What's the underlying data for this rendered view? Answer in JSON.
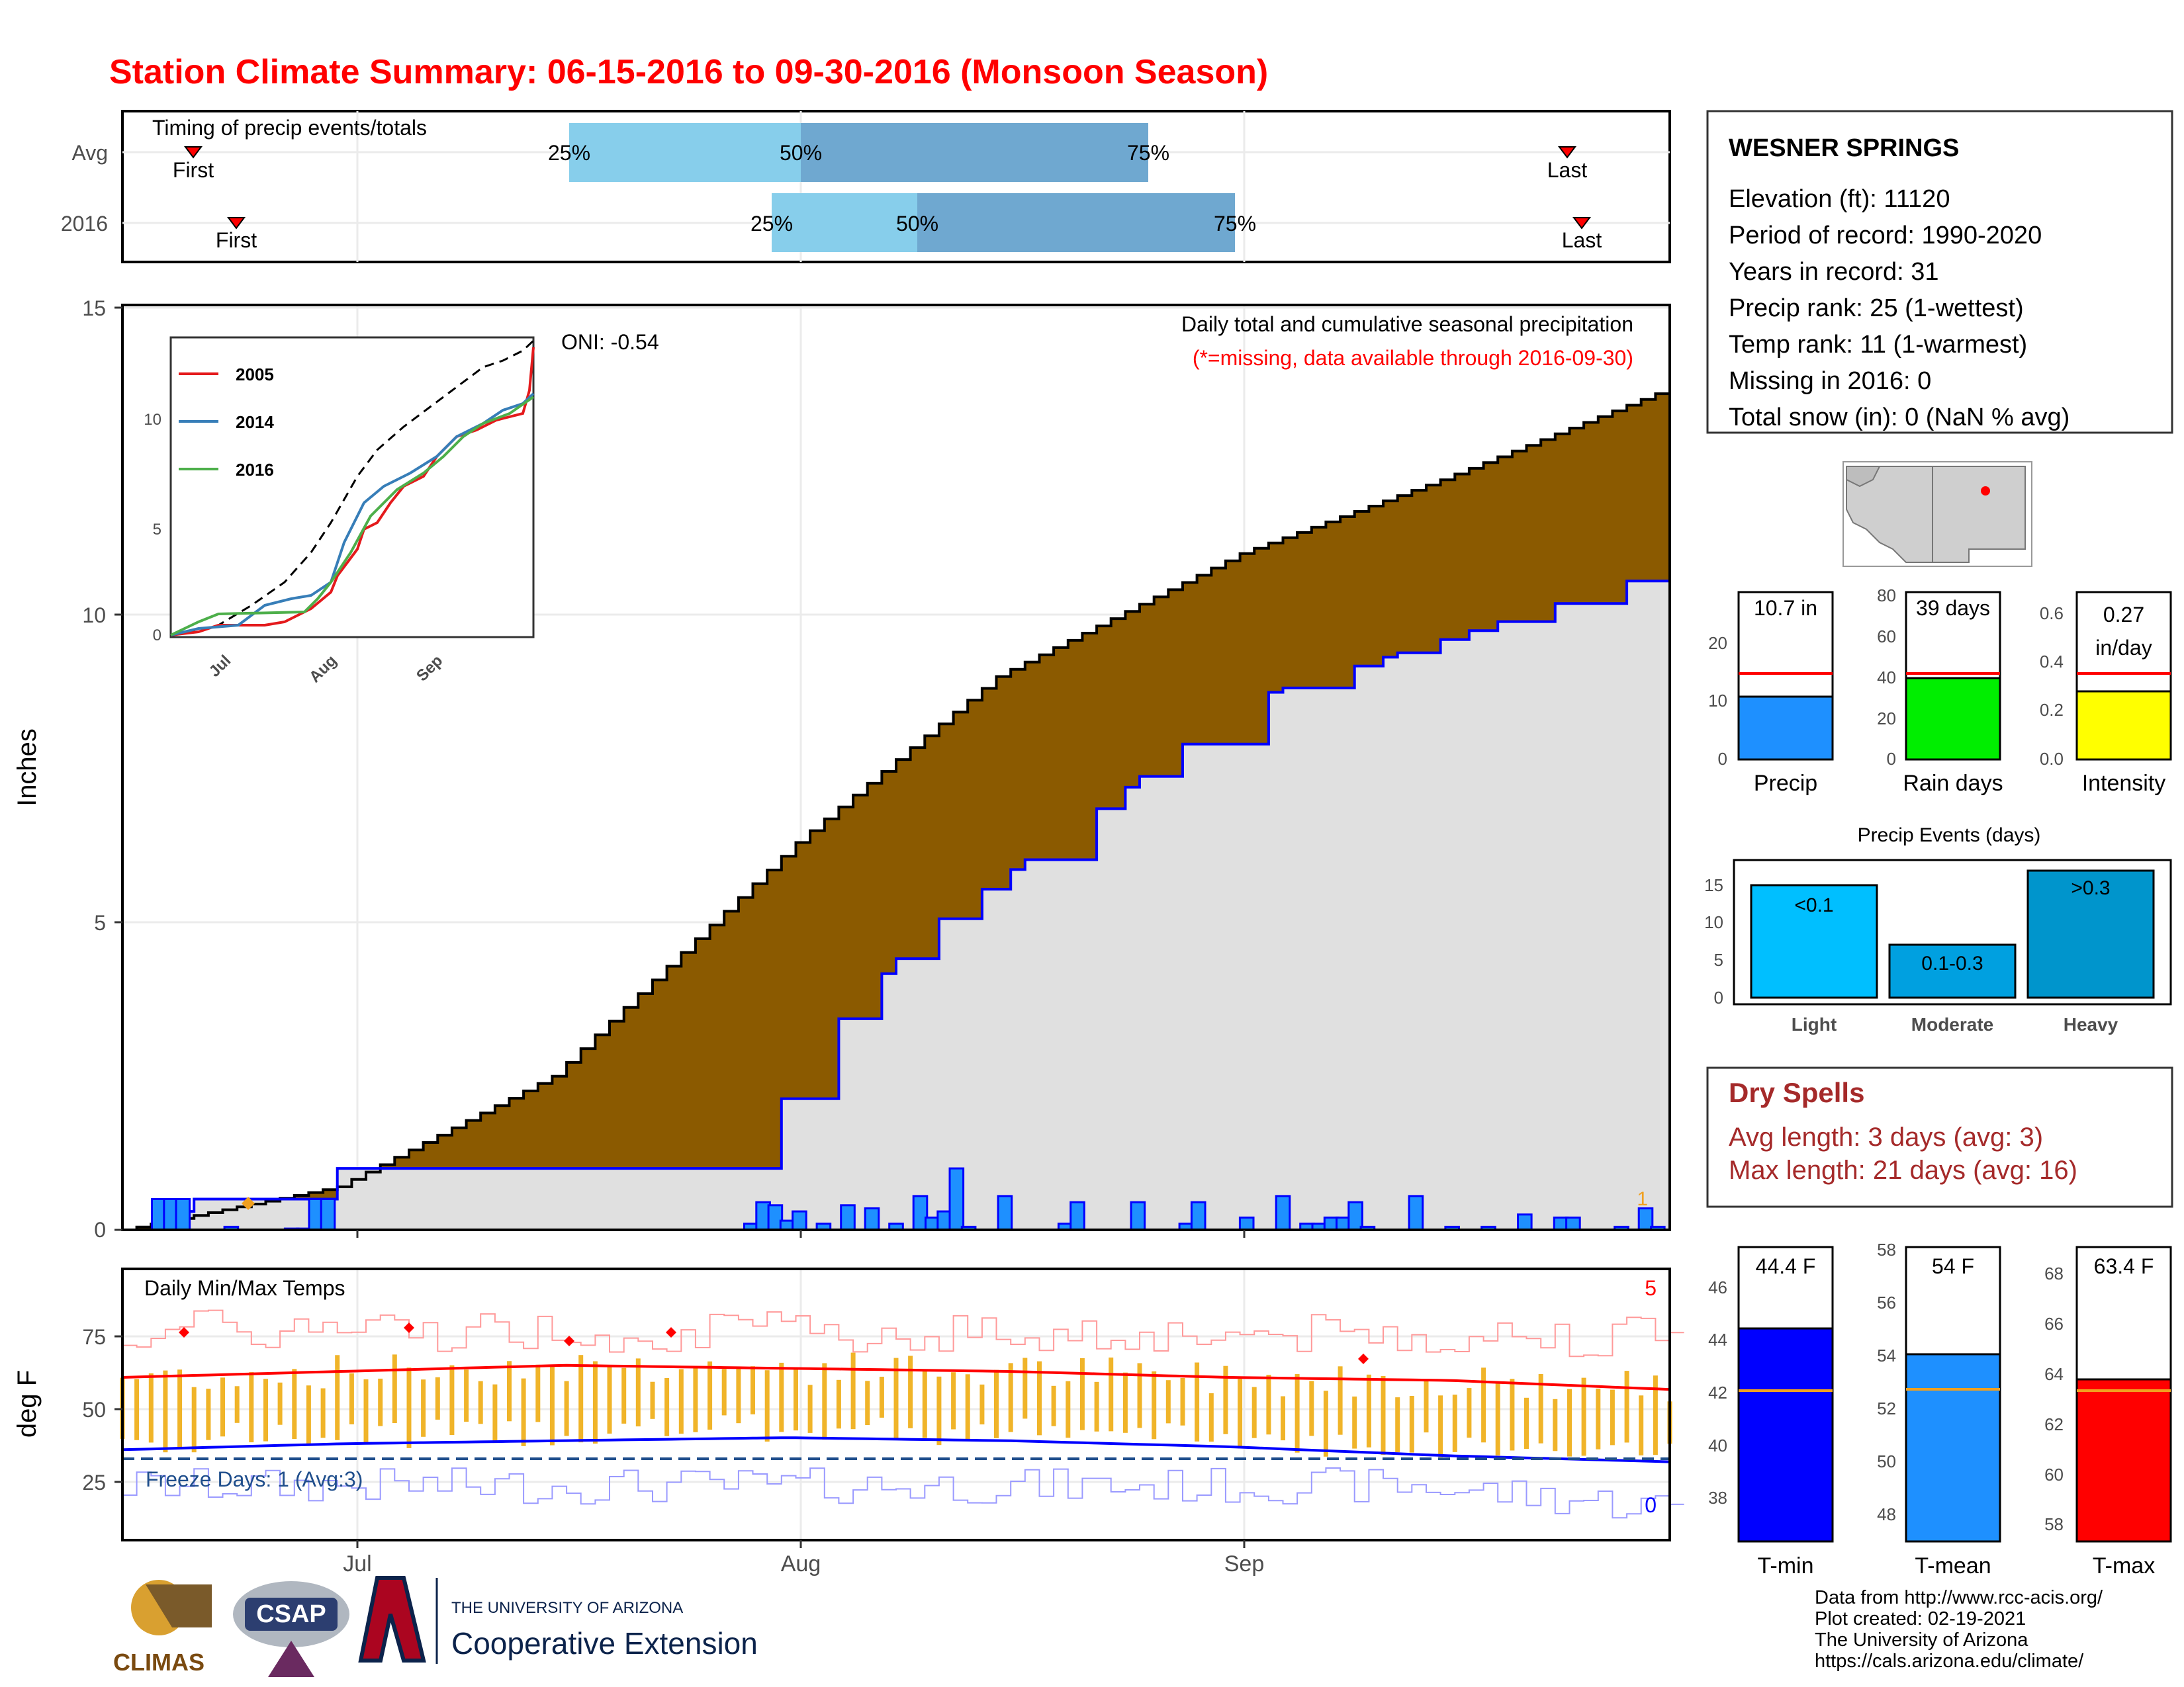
{
  "title": "Station Climate Summary: 06-15-2016 to 09-30-2016 (Monsoon Season)",
  "colors": {
    "title": "#ff0000",
    "brown": "#8b5a00",
    "fill_gray": "#e0e0e0",
    "blue": "#0000ff",
    "bar_blue": "#1e90ff",
    "light_blue": "#87ceeb",
    "mid_blue": "#6fa8d0",
    "orange": "#f0b429",
    "dry_red": "#a52a2a"
  },
  "timing": {
    "label": "Timing of precip events/totals",
    "rows": [
      {
        "name": "Avg",
        "first": "First",
        "last": "Last",
        "p25": "25%",
        "p50": "50%",
        "p75": "75%"
      },
      {
        "name": "2016",
        "first": "First",
        "last": "Last",
        "p25": "25%",
        "p50": "50%",
        "p75": "75%"
      }
    ]
  },
  "main": {
    "ylabel": "Inches",
    "note1": "Daily total and cumulative seasonal precipitation",
    "note2": "(*=missing, data available through 2016-09-30)",
    "oni": "ONI: -0.54",
    "corner_count": "1",
    "yticks": [
      "0",
      "5",
      "10",
      "15"
    ]
  },
  "inset": {
    "legend": [
      "2005",
      "2014",
      "2016"
    ],
    "yticks": [
      "0",
      "5",
      "10"
    ],
    "xticks": [
      "Jul",
      "Aug",
      "Sep"
    ]
  },
  "temps": {
    "title": "Daily Min/Max Temps",
    "freeze": "Freeze Days: 1 (Avg:3)",
    "count_hot": "5",
    "count_cold": "0",
    "ylabel": "deg F",
    "yticks": [
      "25",
      "50",
      "75"
    ],
    "xticks": [
      "Jul",
      "Aug",
      "Sep"
    ]
  },
  "station": {
    "name": "WESNER SPRINGS",
    "lines": [
      "Elevation (ft): 11120",
      "Period of record: 1990-2020",
      "Years in record: 31",
      "Precip rank: 25 (1-wettest)",
      "Temp rank: 11 (1-warmest)",
      "Missing in 2016: 0",
      "Total snow (in): 0 (NaN % avg)"
    ]
  },
  "mini_bars": [
    {
      "label": "Precip",
      "value_text": "10.7 in",
      "yticks": [
        "0",
        "10",
        "20"
      ]
    },
    {
      "label": "Rain days",
      "value_text": "39 days",
      "yticks": [
        "0",
        "20",
        "40",
        "60",
        "80"
      ]
    },
    {
      "label": "Intensity",
      "value_text": "0.27",
      "value_text2": "in/day",
      "yticks": [
        "0.0",
        "0.2",
        "0.4",
        "0.6"
      ]
    }
  ],
  "events": {
    "title": "Precip Events (days)",
    "bars": [
      {
        "cat": "Light",
        "label": "<0.1"
      },
      {
        "cat": "Moderate",
        "label": "0.1-0.3"
      },
      {
        "cat": "Heavy",
        "label": ">0.3"
      }
    ],
    "yticks": [
      "0",
      "5",
      "10",
      "15"
    ]
  },
  "dry": {
    "title": "Dry Spells",
    "line1": "Avg length: 3 days (avg: 3)",
    "line2": "Max length: 21 days (avg: 16)"
  },
  "temp_bars": [
    {
      "label": "T-min",
      "value_text": "44.4 F",
      "yticks": [
        "38",
        "40",
        "42",
        "44",
        "46"
      ]
    },
    {
      "label": "T-mean",
      "value_text": "54 F",
      "yticks": [
        "48",
        "50",
        "52",
        "54",
        "56",
        "58"
      ]
    },
    {
      "label": "T-max",
      "value_text": "63.4 F",
      "yticks": [
        "58",
        "60",
        "62",
        "64",
        "66",
        "68"
      ]
    }
  ],
  "footer": {
    "lines": [
      "Data from http://www.rcc-acis.org/",
      "Plot created: 02-19-2021",
      "The University of Arizona",
      "https://cals.arizona.edu/climate/"
    ],
    "logo1": "CLIMAS",
    "logo2": "CSAP",
    "logo3_top": "THE UNIVERSITY OF ARIZONA",
    "logo3_bottom": "Cooperative Extension"
  },
  "chart_data": [
    {
      "type": "area",
      "title": "Daily total and cumulative seasonal precipitation",
      "ylabel": "Inches",
      "xticks": [
        "Jul",
        "Aug",
        "Sep"
      ],
      "ylim": [
        0,
        15
      ],
      "series": [
        {
          "values_desc": "cumulative average (brown top)",
          "x": [
            "06-15",
            "06-30",
            "07-15",
            "08-01",
            "08-15",
            "09-01",
            "09-15",
            "09-30"
          ],
          "values": [
            0.0,
            0.7,
            2.5,
            6.3,
            9.0,
            11.0,
            12.2,
            13.6
          ]
        },
        {
          "values_desc": "cumulative 2016 (blue line)",
          "x": [
            "06-15",
            "06-20",
            "06-30",
            "07-29",
            "08-01",
            "08-10",
            "08-20",
            "09-01",
            "09-15",
            "09-30"
          ],
          "values": [
            0.0,
            0.5,
            1.0,
            1.0,
            2.7,
            4.9,
            6.5,
            8.6,
            9.6,
            10.7
          ]
        }
      ]
    },
    {
      "type": "line",
      "title": "Daily Min/Max Temps",
      "ylabel": "deg F",
      "ylim": [
        10,
        100
      ],
      "series": [
        {
          "name": "max avg",
          "values": [
            64,
            66,
            68,
            67,
            66,
            64,
            63,
            60
          ]
        },
        {
          "name": "min avg",
          "values": [
            40,
            42,
            43,
            44,
            43,
            41,
            38,
            36
          ]
        }
      ]
    },
    {
      "type": "bar",
      "title": "Precip Events (days)",
      "categories": [
        "Light",
        "Moderate",
        "Heavy"
      ],
      "values": [
        15,
        7,
        17
      ],
      "ylim": [
        0,
        18
      ]
    },
    {
      "type": "bar",
      "categories": [
        "Precip"
      ],
      "values": [
        10.7
      ],
      "avg": 14.5,
      "ylim": [
        0,
        25
      ]
    },
    {
      "type": "bar",
      "categories": [
        "Rain days"
      ],
      "values": [
        39
      ],
      "avg": 41,
      "ylim": [
        0,
        80
      ]
    },
    {
      "type": "bar",
      "categories": [
        "Intensity"
      ],
      "values": [
        0.27
      ],
      "avg": 0.35,
      "ylim": [
        0,
        0.65
      ]
    },
    {
      "type": "bar",
      "categories": [
        "T-min"
      ],
      "values": [
        44.4
      ],
      "avg": 42.1,
      "ylim": [
        37,
        47
      ]
    },
    {
      "type": "bar",
      "categories": [
        "T-mean"
      ],
      "values": [
        54
      ],
      "avg": 52.6,
      "ylim": [
        47,
        58.5
      ]
    },
    {
      "type": "bar",
      "categories": [
        "T-max"
      ],
      "values": [
        63.4
      ],
      "avg": 63.0,
      "ylim": [
        57.5,
        68.5
      ]
    }
  ]
}
